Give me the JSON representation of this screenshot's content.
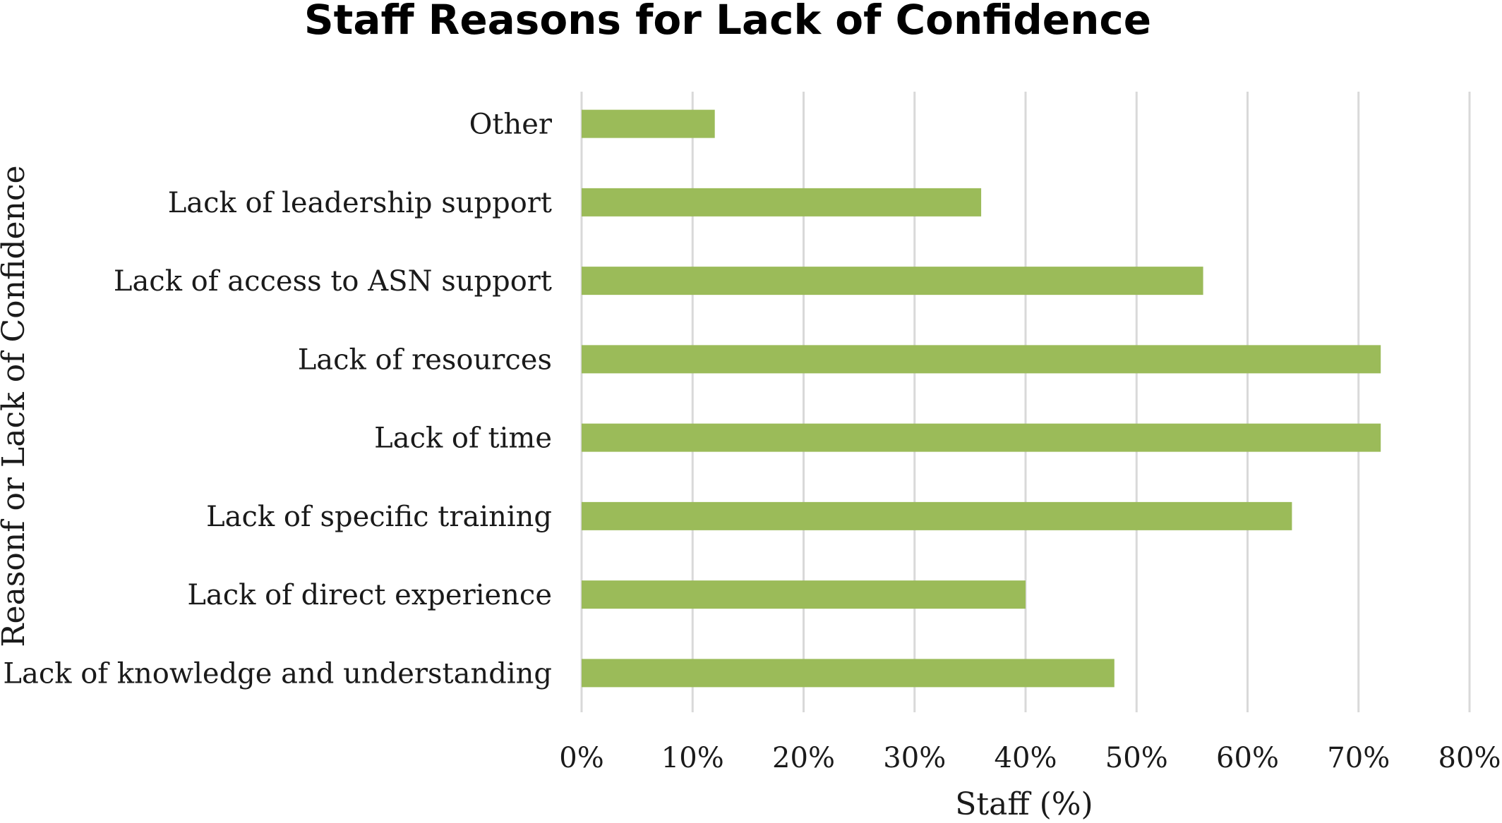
{
  "chart_data": {
    "type": "bar",
    "orientation": "horizontal",
    "title": "Staff Reasons for Lack of Confidence",
    "xlabel": "Staff (%)",
    "ylabel": "Reasonf or Lack of Confidence",
    "categories": [
      "Other",
      "Lack of leadership support",
      "Lack of access to ASN support",
      "Lack of resources",
      "Lack of time",
      "Lack of specific training",
      "Lack of direct experience",
      "Lack of knowledge and understanding"
    ],
    "values": [
      12,
      36,
      56,
      72,
      72,
      64,
      40,
      48
    ],
    "xlim": [
      0,
      80
    ],
    "xticks": [
      "0%",
      "10%",
      "20%",
      "30%",
      "40%",
      "50%",
      "60%",
      "70%",
      "80%"
    ],
    "grid": "vertical",
    "legend": "none",
    "bar_color": "#9bbb59"
  }
}
